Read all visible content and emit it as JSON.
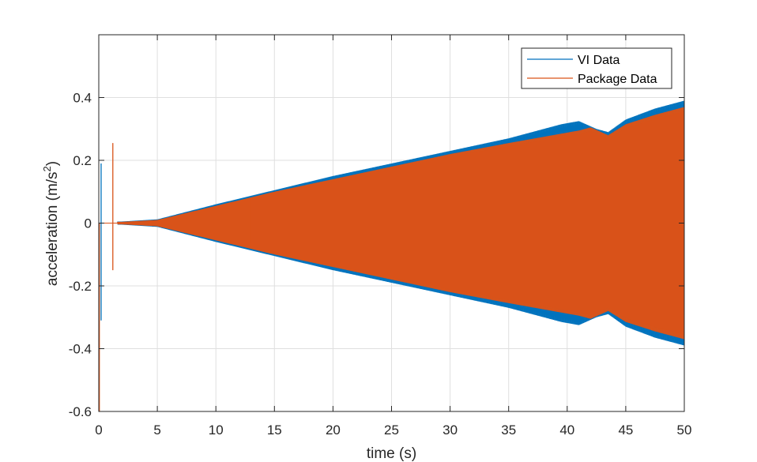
{
  "chart_data": {
    "type": "line",
    "title": "",
    "xlabel": "time (s)",
    "ylabel_main": "acceleration (m/s",
    "ylabel_sup": "2",
    "ylabel_close": ")",
    "xlim": [
      0,
      50
    ],
    "ylim": [
      -0.6,
      0.6
    ],
    "xticks": [
      0,
      5,
      10,
      15,
      20,
      25,
      30,
      35,
      40,
      45,
      50
    ],
    "xtick_labels": [
      "0",
      "5",
      "10",
      "15",
      "20",
      "25",
      "30",
      "35",
      "40",
      "45",
      "50"
    ],
    "yticks": [
      -0.6,
      -0.4,
      -0.2,
      0,
      0.2,
      0.4
    ],
    "ytick_labels": [
      "-0.6",
      "-0.4",
      "-0.2",
      "0",
      "0.2",
      "0.4"
    ],
    "grid": true,
    "legend_position": "top-right",
    "series": [
      {
        "name": "VI Data",
        "color": "#0072BD",
        "envelope_t": [
          0,
          2,
          5,
          10,
          15,
          20,
          25,
          30,
          35,
          38,
          39.5,
          41,
          42.5,
          43.5,
          45,
          47.5,
          50
        ],
        "envelope_amp": [
          0.005,
          0.005,
          0.012,
          0.06,
          0.105,
          0.15,
          0.19,
          0.23,
          0.27,
          0.3,
          0.315,
          0.325,
          0.3,
          0.29,
          0.33,
          0.365,
          0.39
        ],
        "spikes": [
          {
            "t": 0.2,
            "min": -0.31,
            "max": 0.19
          }
        ]
      },
      {
        "name": "Package Data",
        "color": "#D95319",
        "envelope_t": [
          0,
          2,
          5,
          10,
          15,
          20,
          25,
          30,
          35,
          38,
          39.5,
          41,
          42,
          43.5,
          45,
          47.5,
          50
        ],
        "envelope_amp": [
          0.004,
          0.004,
          0.01,
          0.055,
          0.1,
          0.14,
          0.18,
          0.22,
          0.255,
          0.275,
          0.285,
          0.295,
          0.305,
          0.28,
          0.315,
          0.345,
          0.37
        ],
        "spikes": [
          {
            "t": 0.05,
            "min": -0.6,
            "max": 0.0
          },
          {
            "t": 1.2,
            "min": -0.15,
            "max": 0.255
          }
        ]
      }
    ]
  }
}
